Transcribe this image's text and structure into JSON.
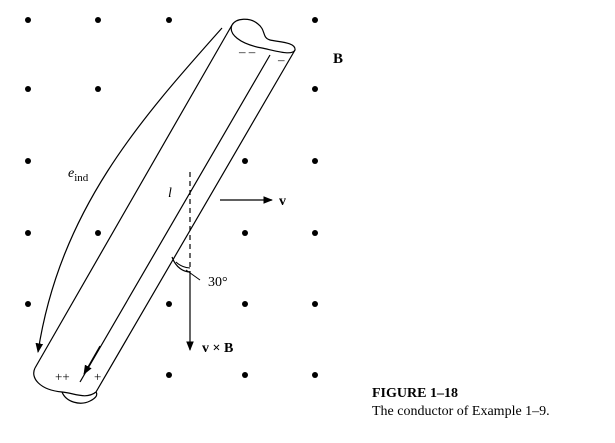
{
  "labels": {
    "field": "B",
    "velocity": "v",
    "cross": "v × B",
    "length": "l",
    "angle": "30°",
    "emf_main": "e",
    "emf_sub": "ind",
    "neg_charges": "– –",
    "neg_charge_single": "–",
    "pos_charges": "++",
    "pos_charge_single": "+"
  },
  "caption": {
    "figure": "FIGURE 1–18",
    "text": "The conductor of Example 1–9."
  }
}
